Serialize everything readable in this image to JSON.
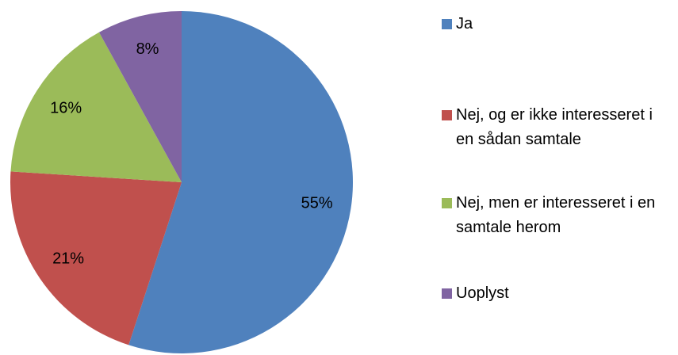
{
  "chart_data": {
    "type": "pie",
    "categories": [
      "Ja",
      "Nej, og er ikke interesseret i en sådan samtale",
      "Nej, men er interesseret i en samtale herom",
      "Uoplyst"
    ],
    "values": [
      55,
      21,
      16,
      8
    ],
    "value_labels": [
      "55%",
      "21%",
      "16%",
      "8%"
    ],
    "colors": [
      "#4f81bd",
      "#c0504d",
      "#9bbb59",
      "#8064a2"
    ]
  }
}
